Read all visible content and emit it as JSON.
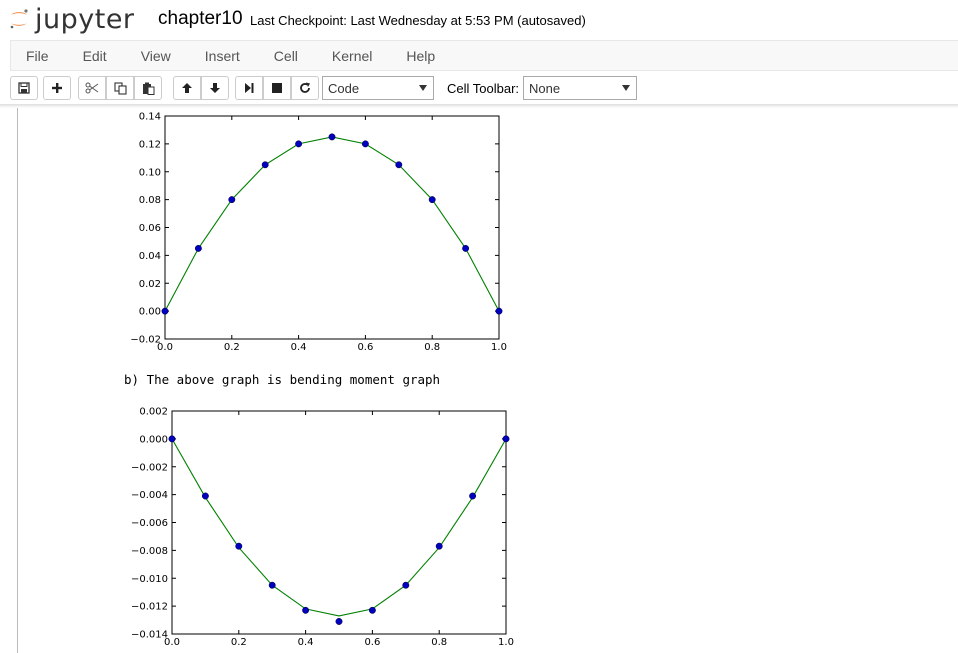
{
  "header": {
    "logo_text": "jupyter",
    "notebook_name": "chapter10",
    "checkpoint": "Last Checkpoint: Last Wednesday at 5:53 PM (autosaved)"
  },
  "menubar": {
    "items": [
      "File",
      "Edit",
      "View",
      "Insert",
      "Cell",
      "Kernel",
      "Help"
    ]
  },
  "toolbar": {
    "buttons": [
      "save-icon",
      "plus-icon",
      "cut-icon",
      "copy-icon",
      "paste-icon",
      "arrow-up-icon",
      "arrow-down-icon",
      "step-forward-icon",
      "stop-icon",
      "restart-icon"
    ],
    "cell_type_value": "Code",
    "cell_toolbar_label": "Cell Toolbar:",
    "cell_toolbar_value": "None"
  },
  "output": {
    "markdown_text": "b) The above graph is bending moment graph"
  },
  "colors": {
    "line": "#008000",
    "marker": "#0000bf",
    "logo_orange": "#f37726"
  },
  "chart_data": [
    {
      "type": "line",
      "markers": true,
      "x": [
        0.0,
        0.1,
        0.2,
        0.3,
        0.4,
        0.5,
        0.6,
        0.7,
        0.8,
        0.9,
        1.0
      ],
      "series": [
        {
          "values": [
            0.0,
            0.045,
            0.08,
            0.105,
            0.12,
            0.125,
            0.12,
            0.105,
            0.08,
            0.045,
            0.0
          ]
        }
      ],
      "xlim": [
        0.0,
        1.0
      ],
      "ylim": [
        -0.02,
        0.14
      ],
      "xticks": [
        "0.0",
        "0.2",
        "0.4",
        "0.6",
        "0.8",
        "1.0"
      ],
      "yticks": [
        "0.14",
        "0.12",
        "0.10",
        "0.08",
        "0.06",
        "0.04",
        "0.02",
        "0.00",
        "−0.02"
      ]
    },
    {
      "type": "line",
      "markers": true,
      "x": [
        0.0,
        0.1,
        0.2,
        0.3,
        0.4,
        0.5,
        0.6,
        0.7,
        0.8,
        0.9,
        1.0
      ],
      "series": [
        {
          "line_values": [
            0.0,
            -0.0042,
            -0.0078,
            -0.0105,
            -0.0122,
            -0.0127,
            -0.0122,
            -0.0105,
            -0.0078,
            -0.0042,
            0.0
          ],
          "marker_values": [
            0.0,
            -0.0041,
            -0.0077,
            -0.0105,
            -0.0123,
            -0.0131,
            -0.0123,
            -0.0105,
            -0.0077,
            -0.0041,
            0.0
          ]
        }
      ],
      "xlim": [
        0.0,
        1.0
      ],
      "ylim": [
        -0.014,
        0.002
      ],
      "xticks": [
        "0.0",
        "0.2",
        "0.4",
        "0.6",
        "0.8",
        "1.0"
      ],
      "yticks": [
        "0.002",
        "0.000",
        "−0.002",
        "−0.004",
        "−0.006",
        "−0.008",
        "−0.010",
        "−0.012",
        "−0.014"
      ]
    }
  ]
}
